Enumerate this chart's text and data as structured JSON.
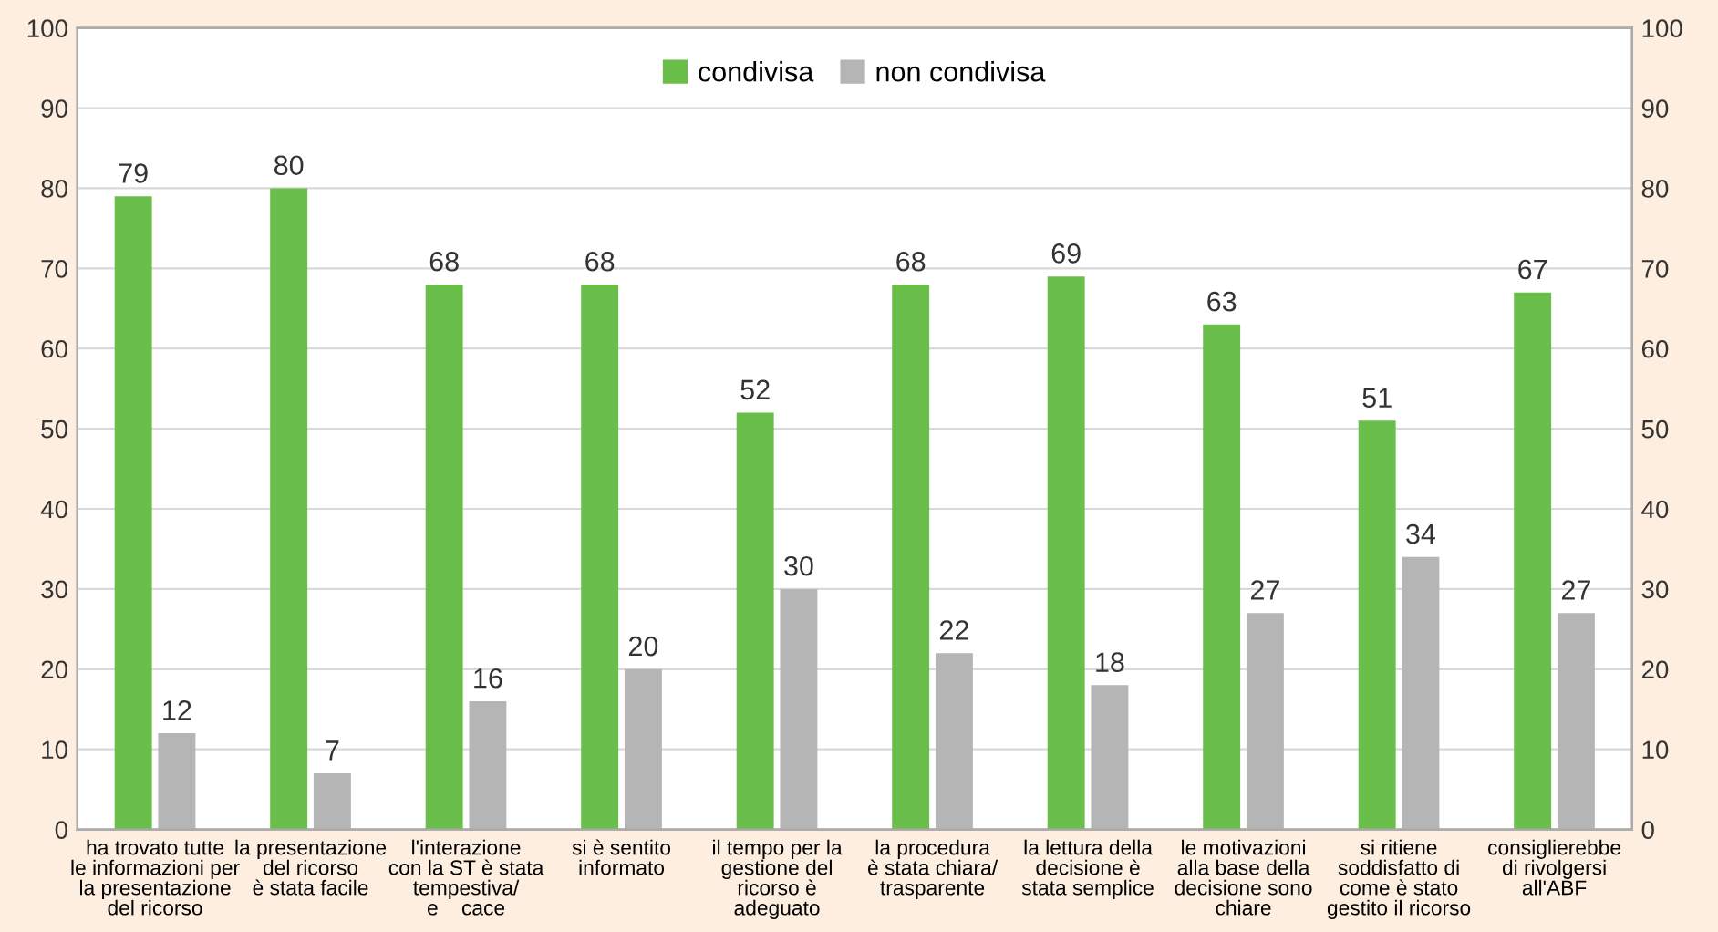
{
  "chart_data": {
    "type": "bar",
    "categories": [
      "ha trovato tutte\nle informazioni per\nla presentazione\ndel ricorso",
      "la presentazione\ndel ricorso\nè stata facile",
      "l'interazione\ncon la ST è stata\ntempestiva/\ne    cace",
      "si è sentito\ninformato",
      "il tempo per la\ngestione del\nricorso è\nadeguato",
      "la procedura\nè stata chiara/\ntrasparente",
      "la lettura della\ndecisione è\nstata semplice",
      "le motivazioni\nalla base della\ndecisione sono\nchiare",
      "si ritiene\nsoddisfatto di\ncome è stato\ngestito il ricorso",
      "consiglierebbe\ndi rivolgersi\nall'ABF"
    ],
    "series": [
      {
        "name": "condivisa",
        "color": "#6abf4b",
        "values": [
          79,
          80,
          68,
          68,
          52,
          68,
          69,
          63,
          51,
          67
        ]
      },
      {
        "name": "non condivisa",
        "color": "#b5b5b6",
        "values": [
          12,
          7,
          16,
          20,
          30,
          22,
          18,
          27,
          34,
          27
        ]
      }
    ],
    "ylim": [
      0,
      100
    ],
    "yticks": [
      0,
      10,
      20,
      30,
      40,
      50,
      60,
      70,
      80,
      90,
      100
    ],
    "y2lim": [
      0,
      100
    ],
    "y2ticks": [
      0,
      10,
      20,
      30,
      40,
      50,
      60,
      70,
      80,
      90,
      100
    ],
    "grid": "y",
    "legend": "top",
    "data_labels": true
  }
}
